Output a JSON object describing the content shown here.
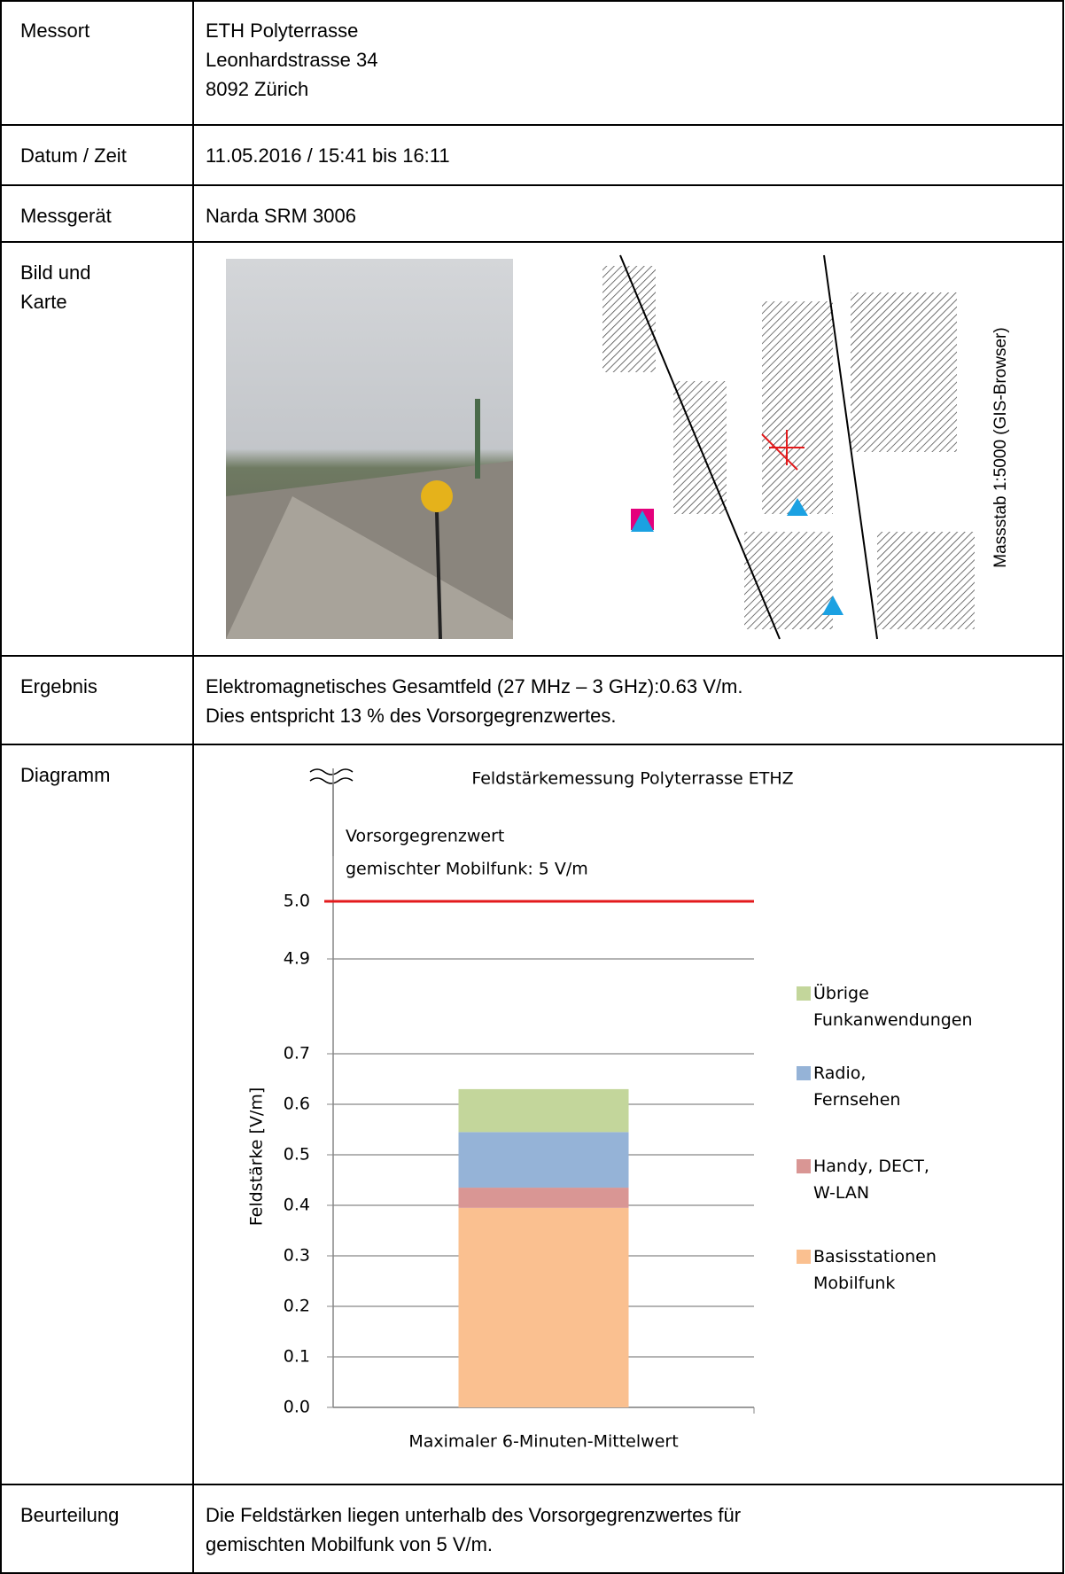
{
  "table": {
    "rows": [
      {
        "label": [
          "Messort"
        ],
        "text": [
          "ETH Polyterrasse",
          "Leonhardstrasse 34",
          "8092 Zürich"
        ]
      },
      {
        "label": [
          "Datum / Zeit"
        ],
        "text": [
          "11.05.2016 / 15:41 bis 16:11"
        ]
      },
      {
        "label": [
          "Messgerät"
        ],
        "text": [
          "Narda SRM 3006"
        ]
      },
      {
        "label": [
          "Bild und",
          "Karte"
        ],
        "map_caption": "Massstab 1:5000 (GIS-Browser)"
      },
      {
        "label": [
          "Ergebnis"
        ],
        "text": [
          "Elektromagnetisches Gesamtfeld (27 MHz – 3 GHz):0.63 V/m.",
          "Dies entspricht 13 % des Vorsorgegrenzwertes."
        ]
      },
      {
        "label": [
          "Diagramm"
        ]
      },
      {
        "label": [
          "Beurteilung"
        ],
        "text": [
          "Die Feldstärken liegen unterhalb des Vorsorgegrenzwertes für",
          "gemischten Mobilfunk von 5 V/m."
        ]
      }
    ]
  },
  "chart_data": {
    "type": "stacked_bar",
    "title": "Feldstärkemessung Polyterrasse ETHZ",
    "categories": [
      "Maximaler 6-Minuten-Mittelwert"
    ],
    "y_label": "Feldstärke [V/m]",
    "series": [
      {
        "name": "Basisstationen Mobilfunk",
        "color": "#fac090",
        "values": [
          0.395
        ]
      },
      {
        "name": "Handy, DECT, W-LAN",
        "color": "#d99694",
        "values": [
          0.04
        ]
      },
      {
        "name": "Radio, Fernsehen",
        "color": "#95b3d7",
        "values": [
          0.11
        ]
      },
      {
        "name": "Übrige Funkanwendungen",
        "color": "#c3d69b",
        "values": [
          0.085
        ]
      }
    ],
    "ylim": [
      0,
      0.7
    ],
    "yticks": [
      {
        "value": 0,
        "label": "0.0"
      },
      0.1,
      0.2,
      0.3,
      0.4,
      0.5,
      0.6,
      0.7
    ],
    "break_ylim": [
      4.9,
      5.0
    ],
    "break_yticks": [
      4.9,
      {
        "value": 5.0,
        "label": "5.0"
      }
    ],
    "limit_line": {
      "value": 5,
      "color": "#e31a1c",
      "label": [
        "Vorsorgegrenzwert",
        "gemischter Mobilfunk: 5 V/m"
      ]
    },
    "grid": true,
    "legend": "right"
  }
}
